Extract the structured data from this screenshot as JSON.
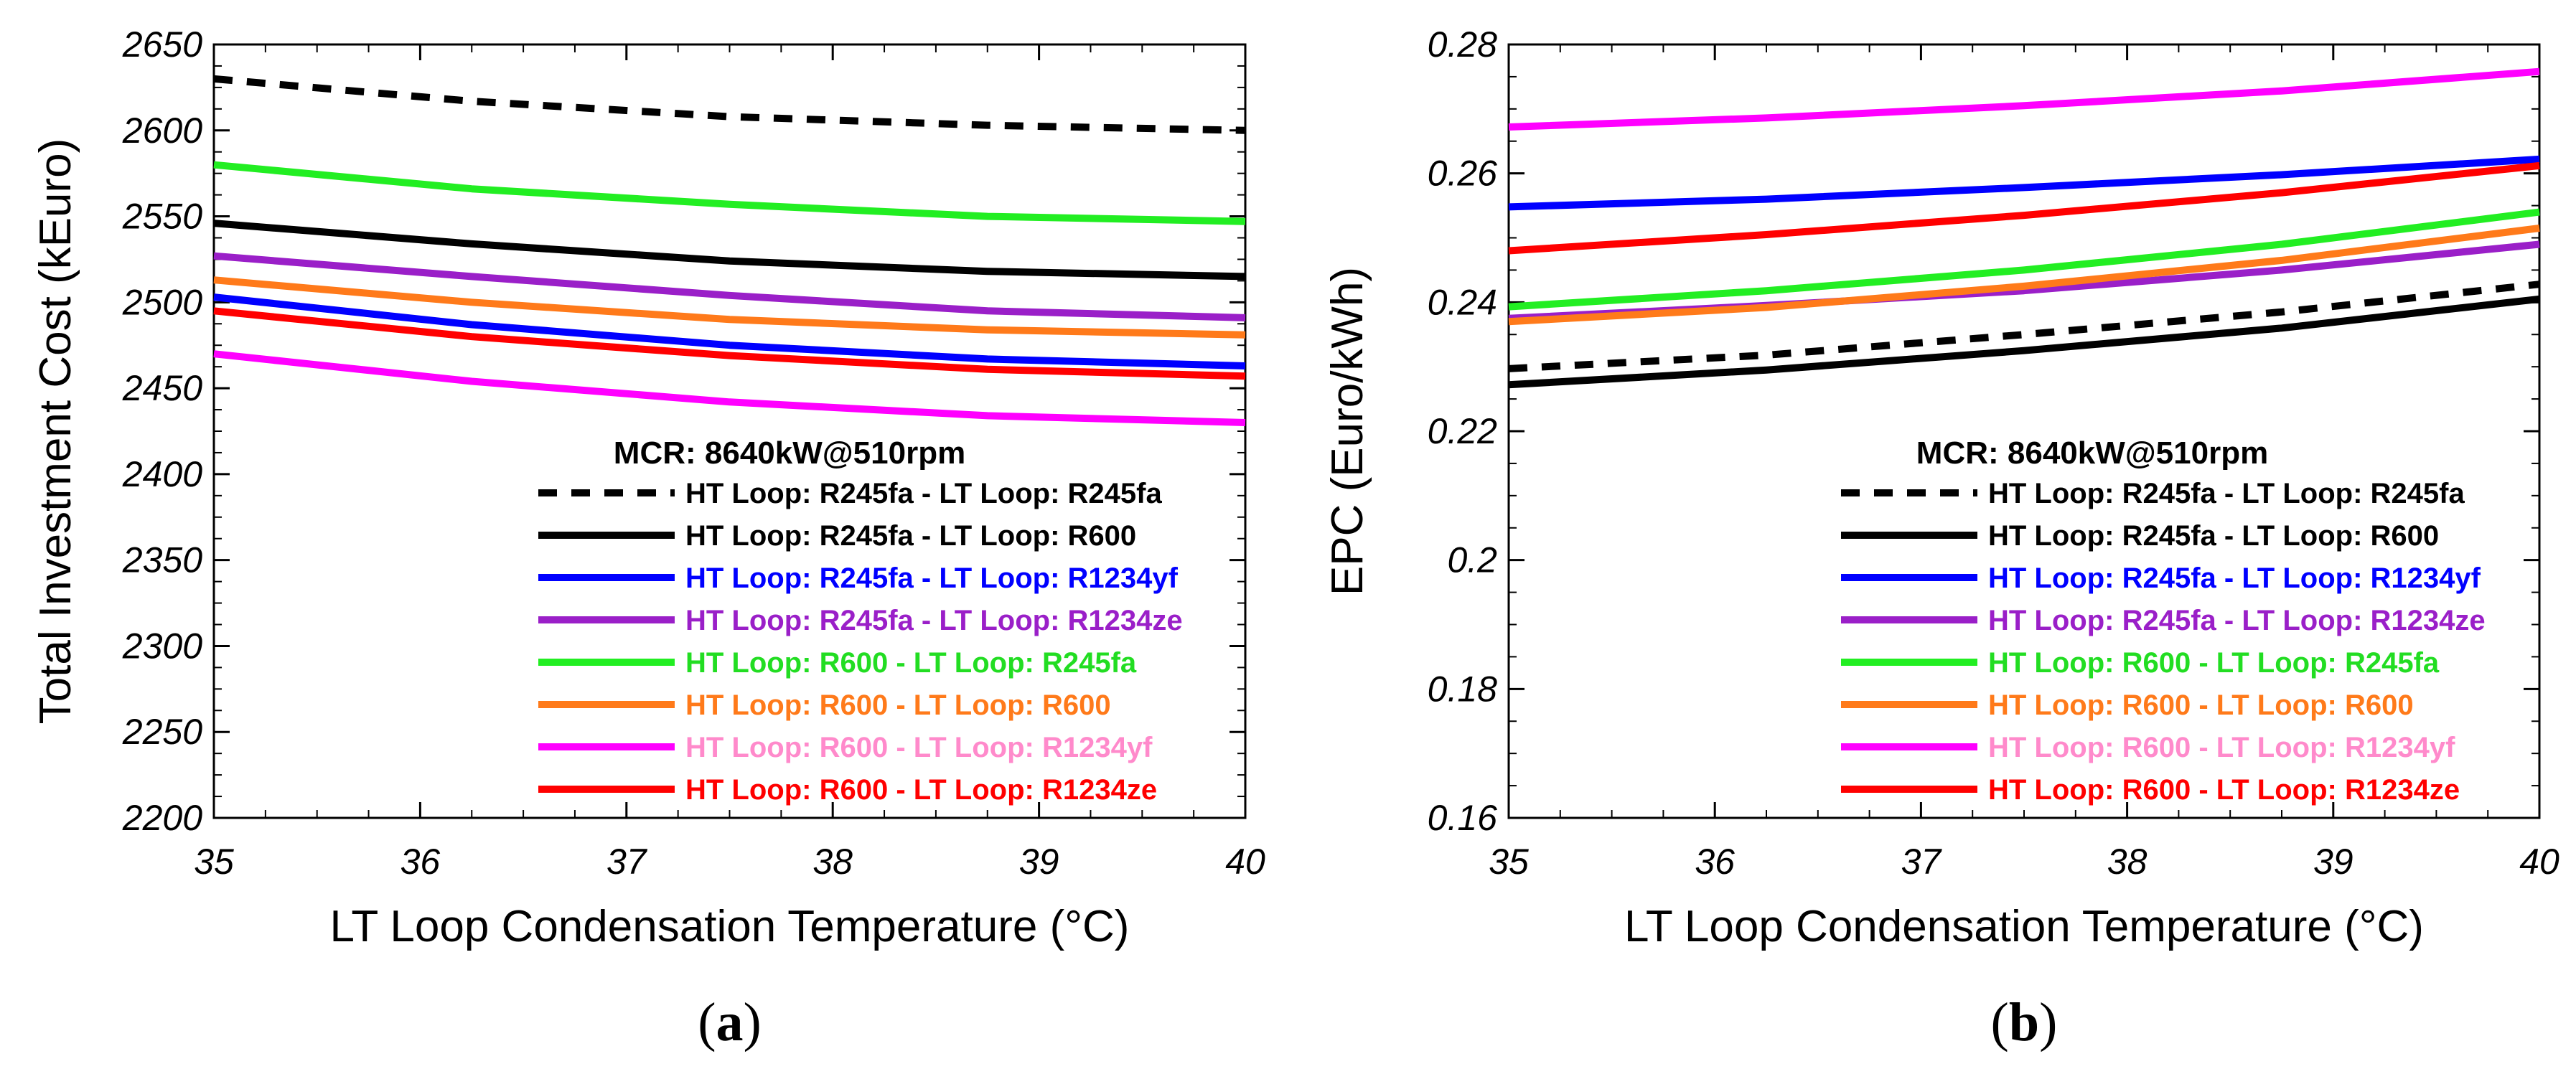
{
  "chart_data": [
    {
      "id": "a",
      "type": "line",
      "panel_label": "a",
      "xlabel": "LT Loop Condensation Temperature (°C)",
      "ylabel": "Total Investment Cost (kEuro)",
      "xlim": [
        35,
        40
      ],
      "ylim": [
        2200,
        2650
      ],
      "xticks": [
        35,
        36,
        37,
        38,
        39,
        40
      ],
      "yticks": [
        2200,
        2250,
        2300,
        2350,
        2400,
        2450,
        2500,
        2550,
        2600,
        2650
      ],
      "ytick_decimals": 0,
      "legend_title": "MCR: 8640kW@510rpm",
      "legend_position": "bottom-right",
      "x": [
        35,
        36.25,
        37.5,
        38.75,
        40
      ],
      "series": [
        {
          "name": "HT Loop: R245fa - LT Loop: R245fa",
          "color": "#000000",
          "text_color": "#000000",
          "dashed": true,
          "values": [
            2630,
            2617,
            2608,
            2603,
            2600
          ]
        },
        {
          "name": "HT Loop: R245fa - LT Loop: R600",
          "color": "#000000",
          "text_color": "#000000",
          "dashed": false,
          "values": [
            2546,
            2534,
            2524,
            2518,
            2515
          ]
        },
        {
          "name": "HT Loop: R245fa - LT Loop: R1234yf",
          "color": "#0000FF",
          "text_color": "#0000FF",
          "dashed": false,
          "values": [
            2503,
            2487,
            2475,
            2467,
            2463
          ]
        },
        {
          "name": "HT Loop: R245fa - LT Loop: R1234ze",
          "color": "#9A1FC8",
          "text_color": "#9A1FC8",
          "dashed": false,
          "values": [
            2527,
            2515,
            2504,
            2495,
            2491
          ]
        },
        {
          "name": "HT Loop: R600 - LT Loop: R245fa",
          "color": "#22EE22",
          "text_color": "#22DD22",
          "dashed": false,
          "values": [
            2580,
            2566,
            2557,
            2550,
            2547
          ]
        },
        {
          "name": "HT Loop: R600 - LT Loop: R600",
          "color": "#FF7A1A",
          "text_color": "#FF7A1A",
          "dashed": false,
          "values": [
            2513,
            2500,
            2490,
            2484,
            2481
          ]
        },
        {
          "name": "HT Loop: R600 - LT Loop: R1234yf",
          "color": "#FF00FF",
          "text_color": "#FF8ACB",
          "dashed": false,
          "values": [
            2470,
            2454,
            2442,
            2434,
            2430
          ]
        },
        {
          "name": "HT Loop: R600 - LT Loop: R1234ze",
          "color": "#FF0000",
          "text_color": "#FF0000",
          "dashed": false,
          "values": [
            2495,
            2480,
            2469,
            2461,
            2457
          ]
        }
      ]
    },
    {
      "id": "b",
      "type": "line",
      "panel_label": "b",
      "xlabel": "LT Loop Condensation Temperature (°C)",
      "ylabel": "EPC (Euro/kWh)",
      "xlim": [
        35,
        40
      ],
      "ylim": [
        0.16,
        0.28
      ],
      "xticks": [
        35,
        36,
        37,
        38,
        39,
        40
      ],
      "yticks": [
        0.16,
        0.18,
        0.2,
        0.22,
        0.24,
        0.26,
        0.28
      ],
      "ytick_labels": [
        "0.16",
        "0.18",
        "0.2",
        "0.22",
        "0.24",
        "0.26",
        "0.28"
      ],
      "legend_title": "MCR: 8640kW@510rpm",
      "legend_position": "bottom-right",
      "x": [
        35,
        36.25,
        37.5,
        38.75,
        40
      ],
      "series": [
        {
          "name": "HT Loop: R245fa - LT Loop: R245fa",
          "color": "#000000",
          "text_color": "#000000",
          "dashed": true,
          "values": [
            0.2297,
            0.2318,
            0.235,
            0.2385,
            0.2428
          ]
        },
        {
          "name": "HT Loop: R245fa - LT Loop: R600",
          "color": "#000000",
          "text_color": "#000000",
          "dashed": false,
          "values": [
            0.2272,
            0.2295,
            0.2325,
            0.236,
            0.2405
          ]
        },
        {
          "name": "HT Loop: R245fa - LT Loop: R1234yf",
          "color": "#0000FF",
          "text_color": "#0000FF",
          "dashed": false,
          "values": [
            0.2548,
            0.256,
            0.2578,
            0.2598,
            0.2622
          ]
        },
        {
          "name": "HT Loop: R245fa - LT Loop: R1234ze",
          "color": "#9A1FC8",
          "text_color": "#9A1FC8",
          "dashed": false,
          "values": [
            0.2375,
            0.2395,
            0.2418,
            0.245,
            0.249
          ]
        },
        {
          "name": "HT Loop: R600 - LT Loop: R245fa",
          "color": "#22EE22",
          "text_color": "#22DD22",
          "dashed": false,
          "values": [
            0.2393,
            0.2418,
            0.245,
            0.249,
            0.254
          ]
        },
        {
          "name": "HT Loop: R600 - LT Loop: R600",
          "color": "#FF7A1A",
          "text_color": "#FF7A1A",
          "dashed": false,
          "values": [
            0.237,
            0.2392,
            0.2425,
            0.2465,
            0.2515
          ]
        },
        {
          "name": "HT Loop: R600 - LT Loop: R1234yf",
          "color": "#FF00FF",
          "text_color": "#FF8ACB",
          "dashed": false,
          "values": [
            0.2672,
            0.2686,
            0.2705,
            0.2728,
            0.2758
          ]
        },
        {
          "name": "HT Loop: R600 - LT Loop: R1234ze",
          "color": "#FF0000",
          "text_color": "#FF0000",
          "dashed": false,
          "values": [
            0.248,
            0.2505,
            0.2535,
            0.257,
            0.2612
          ]
        }
      ]
    }
  ]
}
